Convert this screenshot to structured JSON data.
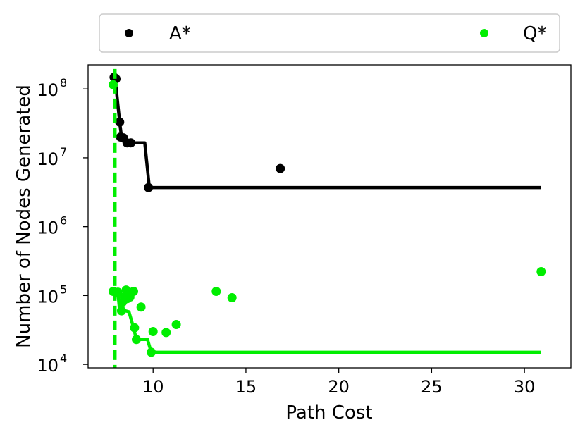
{
  "chart_data": {
    "type": "scatter",
    "xlabel": "Path Cost",
    "ylabel": "Number of Nodes Generated",
    "xlim": [
      6.5,
      32.5
    ],
    "ylim_log10": [
      3.95,
      8.35
    ],
    "y_scale": "log",
    "x_ticks": [
      10,
      15,
      20,
      25,
      30
    ],
    "y_ticks": [
      {
        "value": 10000,
        "base": "10",
        "exp": "4"
      },
      {
        "value": 100000,
        "base": "10",
        "exp": "5"
      },
      {
        "value": 1000000,
        "base": "10",
        "exp": "6"
      },
      {
        "value": 10000000,
        "base": "10",
        "exp": "7"
      },
      {
        "value": 100000000,
        "base": "10",
        "exp": "8"
      }
    ],
    "grid": false,
    "legend_position": "top",
    "series": [
      {
        "name": "A*",
        "color": "#000000",
        "points": [
          {
            "x": 7.9,
            "y": 148000000
          },
          {
            "x": 8.0,
            "y": 140000000
          },
          {
            "x": 8.2,
            "y": 33000000
          },
          {
            "x": 8.25,
            "y": 20000000
          },
          {
            "x": 8.4,
            "y": 19500000
          },
          {
            "x": 8.6,
            "y": 16500000
          },
          {
            "x": 8.8,
            "y": 16500000
          },
          {
            "x": 9.75,
            "y": 3700000
          },
          {
            "x": 16.85,
            "y": 7000000
          }
        ],
        "frontier": [
          {
            "x": 7.95,
            "y": 148000000
          },
          {
            "x": 8.2,
            "y": 33000000
          },
          {
            "x": 8.3,
            "y": 20000000
          },
          {
            "x": 8.45,
            "y": 16500000
          },
          {
            "x": 9.55,
            "y": 16500000
          },
          {
            "x": 9.8,
            "y": 3700000
          },
          {
            "x": 30.9,
            "y": 3700000
          }
        ]
      },
      {
        "name": "Q*",
        "color": "#00ee00",
        "points": [
          {
            "x": 7.85,
            "y": 115000000
          },
          {
            "x": 7.85,
            "y": 115000
          },
          {
            "x": 8.1,
            "y": 112000
          },
          {
            "x": 8.3,
            "y": 60000
          },
          {
            "x": 8.35,
            "y": 80000
          },
          {
            "x": 8.45,
            "y": 95000
          },
          {
            "x": 8.55,
            "y": 120000
          },
          {
            "x": 8.6,
            "y": 90000
          },
          {
            "x": 8.75,
            "y": 95000
          },
          {
            "x": 8.95,
            "y": 115000
          },
          {
            "x": 9.0,
            "y": 34000
          },
          {
            "x": 9.1,
            "y": 23000
          },
          {
            "x": 9.35,
            "y": 68000
          },
          {
            "x": 9.9,
            "y": 15000
          },
          {
            "x": 10.0,
            "y": 30000
          },
          {
            "x": 10.7,
            "y": 29000
          },
          {
            "x": 11.25,
            "y": 38000
          },
          {
            "x": 13.4,
            "y": 115000
          },
          {
            "x": 14.25,
            "y": 93000
          },
          {
            "x": 30.9,
            "y": 222000
          }
        ],
        "frontier": [
          {
            "x": 7.95,
            "y": 195000000
          },
          {
            "x": 7.95,
            "y": 115000
          },
          {
            "x": 8.1,
            "y": 112000
          },
          {
            "x": 8.2,
            "y": 60000
          },
          {
            "x": 8.5,
            "y": 60000
          },
          {
            "x": 8.7,
            "y": 58000
          },
          {
            "x": 8.95,
            "y": 34000
          },
          {
            "x": 9.1,
            "y": 23000
          },
          {
            "x": 9.7,
            "y": 23000
          },
          {
            "x": 9.9,
            "y": 15000
          },
          {
            "x": 30.9,
            "y": 15000
          }
        ]
      }
    ]
  }
}
